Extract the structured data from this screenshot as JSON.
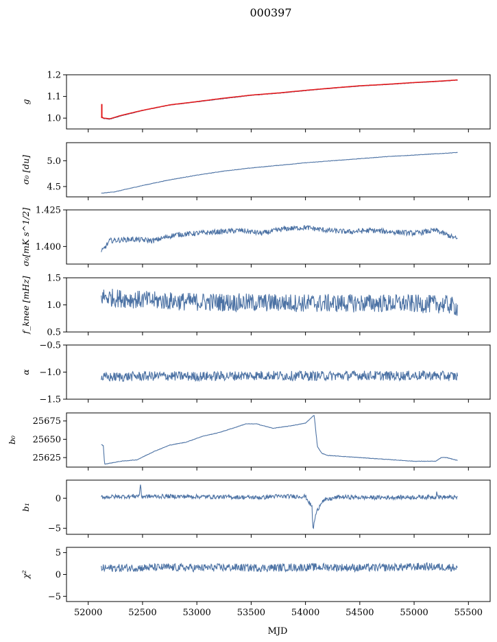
{
  "figure_title": "000397",
  "colors": {
    "series": "#4c72a4",
    "fit": "#e31a1c"
  },
  "chart_data": [
    {
      "type": "line",
      "id": "g",
      "ylabel": "g",
      "ylim": [
        0.95,
        1.2
      ],
      "yticks": [
        1.0,
        1.1,
        1.2
      ],
      "ytick_labels": [
        "1.0",
        "1.1",
        "1.2"
      ],
      "xlim": [
        51800,
        55700
      ],
      "series": [
        {
          "color": "#4c72a4",
          "x": [
            52120,
            52140,
            52200,
            52300,
            52500,
            52750,
            53000,
            53250,
            53500,
            53750,
            54000,
            54250,
            54500,
            54750,
            55000,
            55250,
            55400
          ],
          "y": [
            1.005,
            0.998,
            0.995,
            1.01,
            1.035,
            1.06,
            1.075,
            1.09,
            1.105,
            1.115,
            1.127,
            1.138,
            1.148,
            1.155,
            1.163,
            1.17,
            1.175
          ]
        },
        {
          "color": "#e31a1c",
          "x": [
            52120,
            52140,
            52200,
            52300,
            52500,
            52750,
            53000,
            53250,
            53500,
            53750,
            54000,
            54250,
            54500,
            54750,
            55000,
            55250,
            55400
          ],
          "y": [
            1.008,
            1.0,
            0.997,
            1.012,
            1.036,
            1.061,
            1.076,
            1.092,
            1.106,
            1.116,
            1.128,
            1.139,
            1.149,
            1.156,
            1.164,
            1.171,
            1.176
          ]
        }
      ]
    },
    {
      "type": "line",
      "id": "sigma0",
      "ylabel": "σ₀ [du]",
      "ylim": [
        4.3,
        5.35
      ],
      "yticks": [
        4.5,
        5.0
      ],
      "ytick_labels": [
        "4.5",
        "5.0"
      ],
      "xlim": [
        51800,
        55700
      ],
      "series": [
        {
          "color": "#4c72a4",
          "x": [
            52120,
            52250,
            52500,
            52750,
            53000,
            53250,
            53500,
            53750,
            54000,
            54250,
            54500,
            54750,
            55000,
            55250,
            55400
          ],
          "y": [
            4.37,
            4.4,
            4.52,
            4.63,
            4.72,
            4.8,
            4.86,
            4.91,
            4.96,
            5.0,
            5.04,
            5.08,
            5.11,
            5.14,
            5.16
          ]
        }
      ]
    },
    {
      "type": "line",
      "id": "sigma0_mks",
      "ylabel": "σ₀[mK s^1/2]",
      "ylim": [
        1.388,
        1.425
      ],
      "yticks": [
        1.4,
        1.425
      ],
      "ytick_labels": [
        "1.400",
        "1.425"
      ],
      "xlim": [
        51800,
        55700
      ],
      "series": [
        {
          "color": "#4c72a4",
          "x": [
            52120,
            52200,
            52400,
            52600,
            52800,
            53000,
            53200,
            53400,
            53600,
            53800,
            54000,
            54200,
            54400,
            54600,
            54800,
            55000,
            55200,
            55400
          ],
          "y": [
            1.396,
            1.404,
            1.405,
            1.404,
            1.408,
            1.409,
            1.41,
            1.411,
            1.409,
            1.412,
            1.413,
            1.411,
            1.41,
            1.411,
            1.41,
            1.409,
            1.411,
            1.405
          ]
        }
      ]
    },
    {
      "type": "line",
      "id": "fknee",
      "ylabel": "f_knee [mHz]",
      "ylim": [
        0.5,
        1.5
      ],
      "yticks": [
        0.5,
        1.0,
        1.5
      ],
      "ytick_labels": [
        "0.5",
        "1.0",
        "1.5"
      ],
      "xlim": [
        51800,
        55700
      ],
      "series": [
        {
          "color": "#4c72a4",
          "x": [
            52120,
            52300,
            52600,
            52900,
            53200,
            53500,
            53800,
            54100,
            54400,
            54700,
            55000,
            55300,
            55400
          ],
          "y": [
            1.15,
            1.12,
            1.08,
            1.06,
            1.05,
            1.04,
            1.04,
            1.03,
            1.03,
            1.03,
            1.02,
            1.01,
            0.95
          ]
        }
      ]
    },
    {
      "type": "line",
      "id": "alpha",
      "ylabel": "α",
      "ylim": [
        -1.5,
        -0.5
      ],
      "yticks": [
        -1.5,
        -1.0,
        -0.5
      ],
      "ytick_labels": [
        "−1.5",
        "−1.0",
        "−0.5"
      ],
      "xlim": [
        51800,
        55700
      ],
      "series": [
        {
          "color": "#4c72a4",
          "x": [
            52120,
            52400,
            52700,
            53000,
            53300,
            53600,
            53900,
            54200,
            54500,
            54800,
            55100,
            55400
          ],
          "y": [
            -1.1,
            -1.08,
            -1.07,
            -1.08,
            -1.07,
            -1.06,
            -1.07,
            -1.07,
            -1.06,
            -1.07,
            -1.06,
            -1.08
          ]
        }
      ]
    },
    {
      "type": "line",
      "id": "b0",
      "ylabel": "b₀",
      "ylim": [
        25612,
        25686
      ],
      "yticks": [
        25625,
        25650,
        25675
      ],
      "ytick_labels": [
        "25625",
        "25650",
        "25675"
      ],
      "xlim": [
        51800,
        55700
      ],
      "series": [
        {
          "color": "#4c72a4",
          "x": [
            52120,
            52140,
            52150,
            52300,
            52450,
            52600,
            52750,
            52900,
            53050,
            53200,
            53350,
            53450,
            53550,
            53700,
            53850,
            54000,
            54080,
            54110,
            54150,
            54200,
            54400,
            54600,
            54800,
            55000,
            55200,
            55250,
            55300,
            55400
          ],
          "y": [
            25643,
            25641,
            25616,
            25620,
            25622,
            25633,
            25642,
            25646,
            25654,
            25659,
            25666,
            25671,
            25671,
            25665,
            25668,
            25672,
            25683,
            25640,
            25631,
            25628,
            25626,
            25624,
            25622,
            25620,
            25620,
            25625,
            25625,
            25621
          ]
        }
      ]
    },
    {
      "type": "line",
      "id": "b1",
      "ylabel": "b₁",
      "ylim": [
        -6,
        3
      ],
      "yticks": [
        -5,
        0
      ],
      "ytick_labels": [
        "−5",
        "0"
      ],
      "xlim": [
        51800,
        55700
      ],
      "series": [
        {
          "color": "#4c72a4",
          "x": [
            52120,
            52400,
            52470,
            52480,
            52490,
            52800,
            53300,
            53600,
            53700,
            54000,
            54060,
            54070,
            54090,
            54110,
            54150,
            54300,
            54600,
            55200,
            55210,
            55220,
            55400
          ],
          "y": [
            0.2,
            0.3,
            0.4,
            2.5,
            0.3,
            0.3,
            0.2,
            0.1,
            0.3,
            0.3,
            -1.5,
            -5.3,
            -3.0,
            -2.0,
            -0.5,
            0.2,
            0.1,
            0.2,
            1.2,
            0.2,
            0.1
          ]
        }
      ]
    },
    {
      "type": "line",
      "id": "chi2",
      "ylabel": "χ²",
      "ylim": [
        -6.2,
        6.2
      ],
      "yticks": [
        -5,
        0,
        5
      ],
      "ytick_labels": [
        "−5",
        "0",
        "5"
      ],
      "xlim": [
        51800,
        55700
      ],
      "xticks": [
        52000,
        52500,
        53000,
        53500,
        54000,
        54500,
        55000,
        55500
      ],
      "xtick_labels": [
        "52000",
        "52500",
        "53000",
        "53500",
        "54000",
        "54500",
        "55000",
        "55500"
      ],
      "xlabel": "MJD",
      "series": [
        {
          "color": "#4c72a4",
          "x": [
            52120,
            52400,
            52700,
            53000,
            53300,
            53600,
            53900,
            54200,
            54500,
            54800,
            55100,
            55400
          ],
          "y": [
            1.4,
            1.5,
            1.6,
            1.5,
            1.6,
            1.5,
            1.6,
            1.7,
            1.5,
            1.6,
            1.8,
            1.6
          ]
        }
      ]
    }
  ]
}
